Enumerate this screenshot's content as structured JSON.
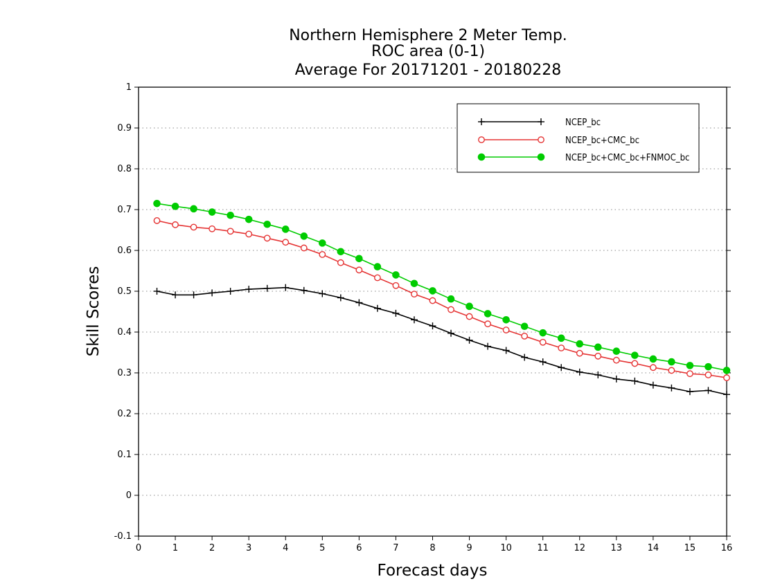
{
  "chart_data": {
    "type": "line",
    "title": [
      "Northern Hemisphere 2 Meter Temp.",
      "ROC area (0-1)",
      "Average For 20171201 - 20180228"
    ],
    "xlabel": "Forecast days",
    "ylabel": "Skill Scores",
    "xlim": [
      0,
      16
    ],
    "ylim": [
      -0.1,
      1
    ],
    "xticks": [
      "0",
      "1",
      "2",
      "3",
      "4",
      "5",
      "6",
      "7",
      "8",
      "9",
      "10",
      "11",
      "12",
      "13",
      "14",
      "15",
      "16"
    ],
    "yticks": [
      "-0.1",
      "0",
      "0.1",
      "0.2",
      "0.3",
      "0.4",
      "0.5",
      "0.6",
      "0.7",
      "0.8",
      "0.9",
      "1"
    ],
    "grid": "horizontal-dotted",
    "legend_position": "top-right",
    "x": [
      0.5,
      1,
      1.5,
      2,
      2.5,
      3,
      3.5,
      4,
      4.5,
      5,
      5.5,
      6,
      6.5,
      7,
      7.5,
      8,
      8.5,
      9,
      9.5,
      10,
      10.5,
      11,
      11.5,
      12,
      12.5,
      13,
      13.5,
      14,
      14.5,
      15,
      15.5,
      16
    ],
    "series": [
      {
        "name": "NCEP_bc",
        "color": "#000000",
        "marker": "plus",
        "values": [
          0.5,
          0.491,
          0.491,
          0.496,
          0.5,
          0.505,
          0.507,
          0.509,
          0.502,
          0.494,
          0.484,
          0.472,
          0.458,
          0.446,
          0.43,
          0.415,
          0.397,
          0.38,
          0.365,
          0.355,
          0.338,
          0.327,
          0.313,
          0.302,
          0.295,
          0.285,
          0.28,
          0.27,
          0.263,
          0.254,
          0.257,
          0.247
        ]
      },
      {
        "name": "NCEP_bc+CMC_bc",
        "color": "#e53333",
        "marker": "open-circle",
        "values": [
          0.673,
          0.663,
          0.657,
          0.653,
          0.647,
          0.64,
          0.63,
          0.62,
          0.606,
          0.59,
          0.57,
          0.552,
          0.533,
          0.514,
          0.493,
          0.477,
          0.455,
          0.438,
          0.42,
          0.405,
          0.39,
          0.375,
          0.361,
          0.348,
          0.341,
          0.331,
          0.323,
          0.313,
          0.306,
          0.298,
          0.295,
          0.288
        ]
      },
      {
        "name": "NCEP_bc+CMC_bc+FNMOC_bc",
        "color": "#00cc00",
        "marker": "filled-circle",
        "values": [
          0.715,
          0.708,
          0.702,
          0.694,
          0.686,
          0.676,
          0.664,
          0.652,
          0.635,
          0.618,
          0.597,
          0.58,
          0.56,
          0.54,
          0.519,
          0.501,
          0.481,
          0.463,
          0.445,
          0.43,
          0.414,
          0.398,
          0.385,
          0.371,
          0.363,
          0.353,
          0.343,
          0.334,
          0.327,
          0.318,
          0.315,
          0.306
        ]
      }
    ]
  }
}
